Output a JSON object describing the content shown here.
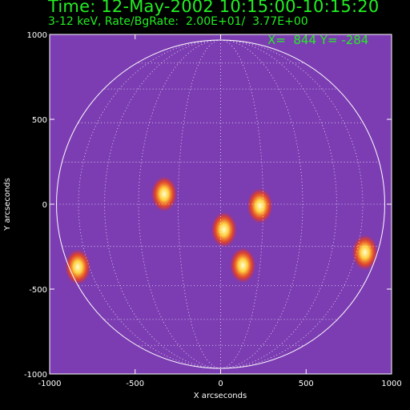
{
  "header": {
    "time_line": "Time: 12-May-2002 10:15:00-10:15:20",
    "rate_line": "3-12 keV, Rate/BgRate:  2.00E+01/  3.77E+00"
  },
  "cursor_readout": "X=  844 Y= -284",
  "axes": {
    "xlabel": "X arcseconds",
    "ylabel": "Y arcseconds",
    "x_ticks": [
      "-1000",
      "-500",
      "0",
      "500",
      "1000"
    ],
    "y_ticks": [
      "1000",
      "500",
      "0",
      "-500",
      "-1000"
    ]
  },
  "image": {
    "x_range": [
      -1000,
      1000
    ],
    "y_range": [
      -1000,
      1000
    ],
    "solar_limb_radius_arcsec": 960,
    "colortable": "red-temperature with purple negatives",
    "bright_sources": [
      {
        "x": 844,
        "y": -284
      },
      {
        "x": -835,
        "y": -370
      },
      {
        "x": 230,
        "y": -10
      },
      {
        "x": 130,
        "y": -360
      },
      {
        "x": 20,
        "y": -150
      },
      {
        "x": -330,
        "y": 60
      }
    ]
  },
  "colors": {
    "text": "#22ee22",
    "axes": "#ffffff",
    "limb": "#ffffff"
  }
}
